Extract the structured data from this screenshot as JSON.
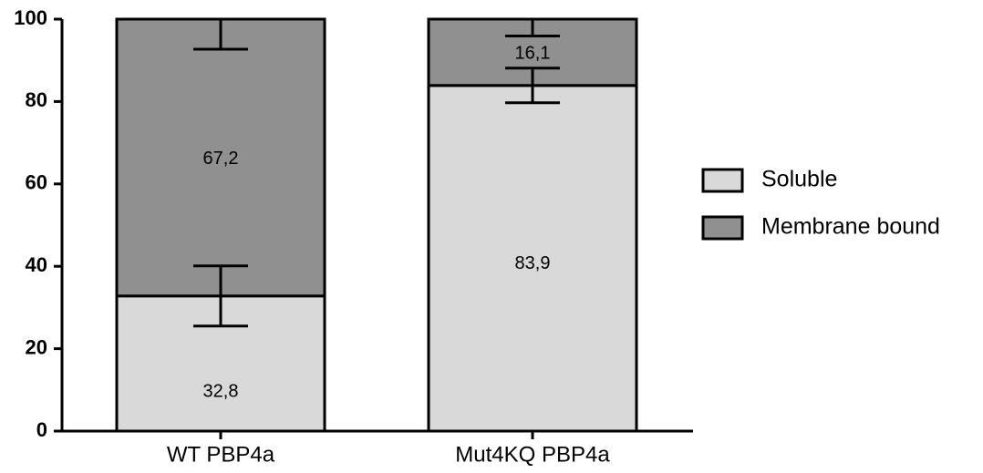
{
  "chart_data": {
    "type": "bar",
    "stacked": true,
    "categories": [
      "WT PBP4a",
      "Mut4KQ PBP4a"
    ],
    "series": [
      {
        "name": "Soluble",
        "values": [
          32.8,
          83.9
        ],
        "labels": [
          "32,8",
          "83,9"
        ],
        "error_bars": [
          7.3,
          4.2
        ],
        "color": "#d9d9d9"
      },
      {
        "name": "Membrane bound",
        "values": [
          67.2,
          16.1
        ],
        "labels": [
          "67,2",
          "16,1"
        ],
        "error_bars": [
          7.3,
          4.1
        ],
        "color": "#909090"
      }
    ],
    "ylim": [
      0,
      100
    ],
    "yticks": [
      0,
      20,
      40,
      60,
      80,
      100
    ],
    "title": "",
    "xlabel": "",
    "ylabel": "",
    "legend": "right",
    "grid": false
  }
}
